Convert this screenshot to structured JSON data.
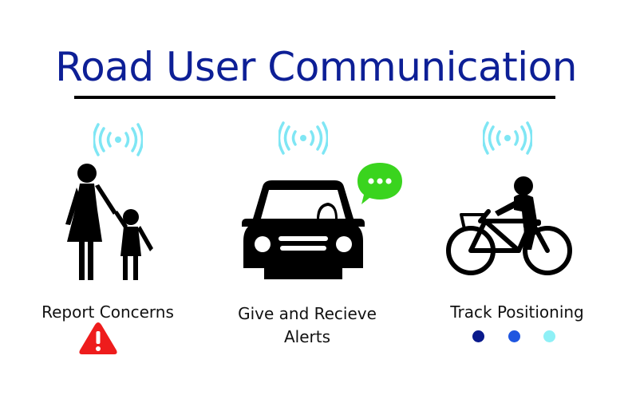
{
  "title": "Road User Communication",
  "features": {
    "report": {
      "label": "Report Concerns",
      "icon": "warning-icon"
    },
    "alerts": {
      "label_line1": "Give and Recieve",
      "label_line2": "Alerts",
      "icon": "chat-bubble-icon"
    },
    "track": {
      "label": "Track Positioning",
      "icon": "position-dots-icon"
    }
  },
  "colors": {
    "title": "#0d1f96",
    "signal": "#7fe6f4",
    "warning": "#ee1c1c",
    "chat": "#3ad41e",
    "dot_dark": "#0a1a8c",
    "dot_mid": "#1f56e0",
    "dot_light": "#8ef0f6"
  }
}
